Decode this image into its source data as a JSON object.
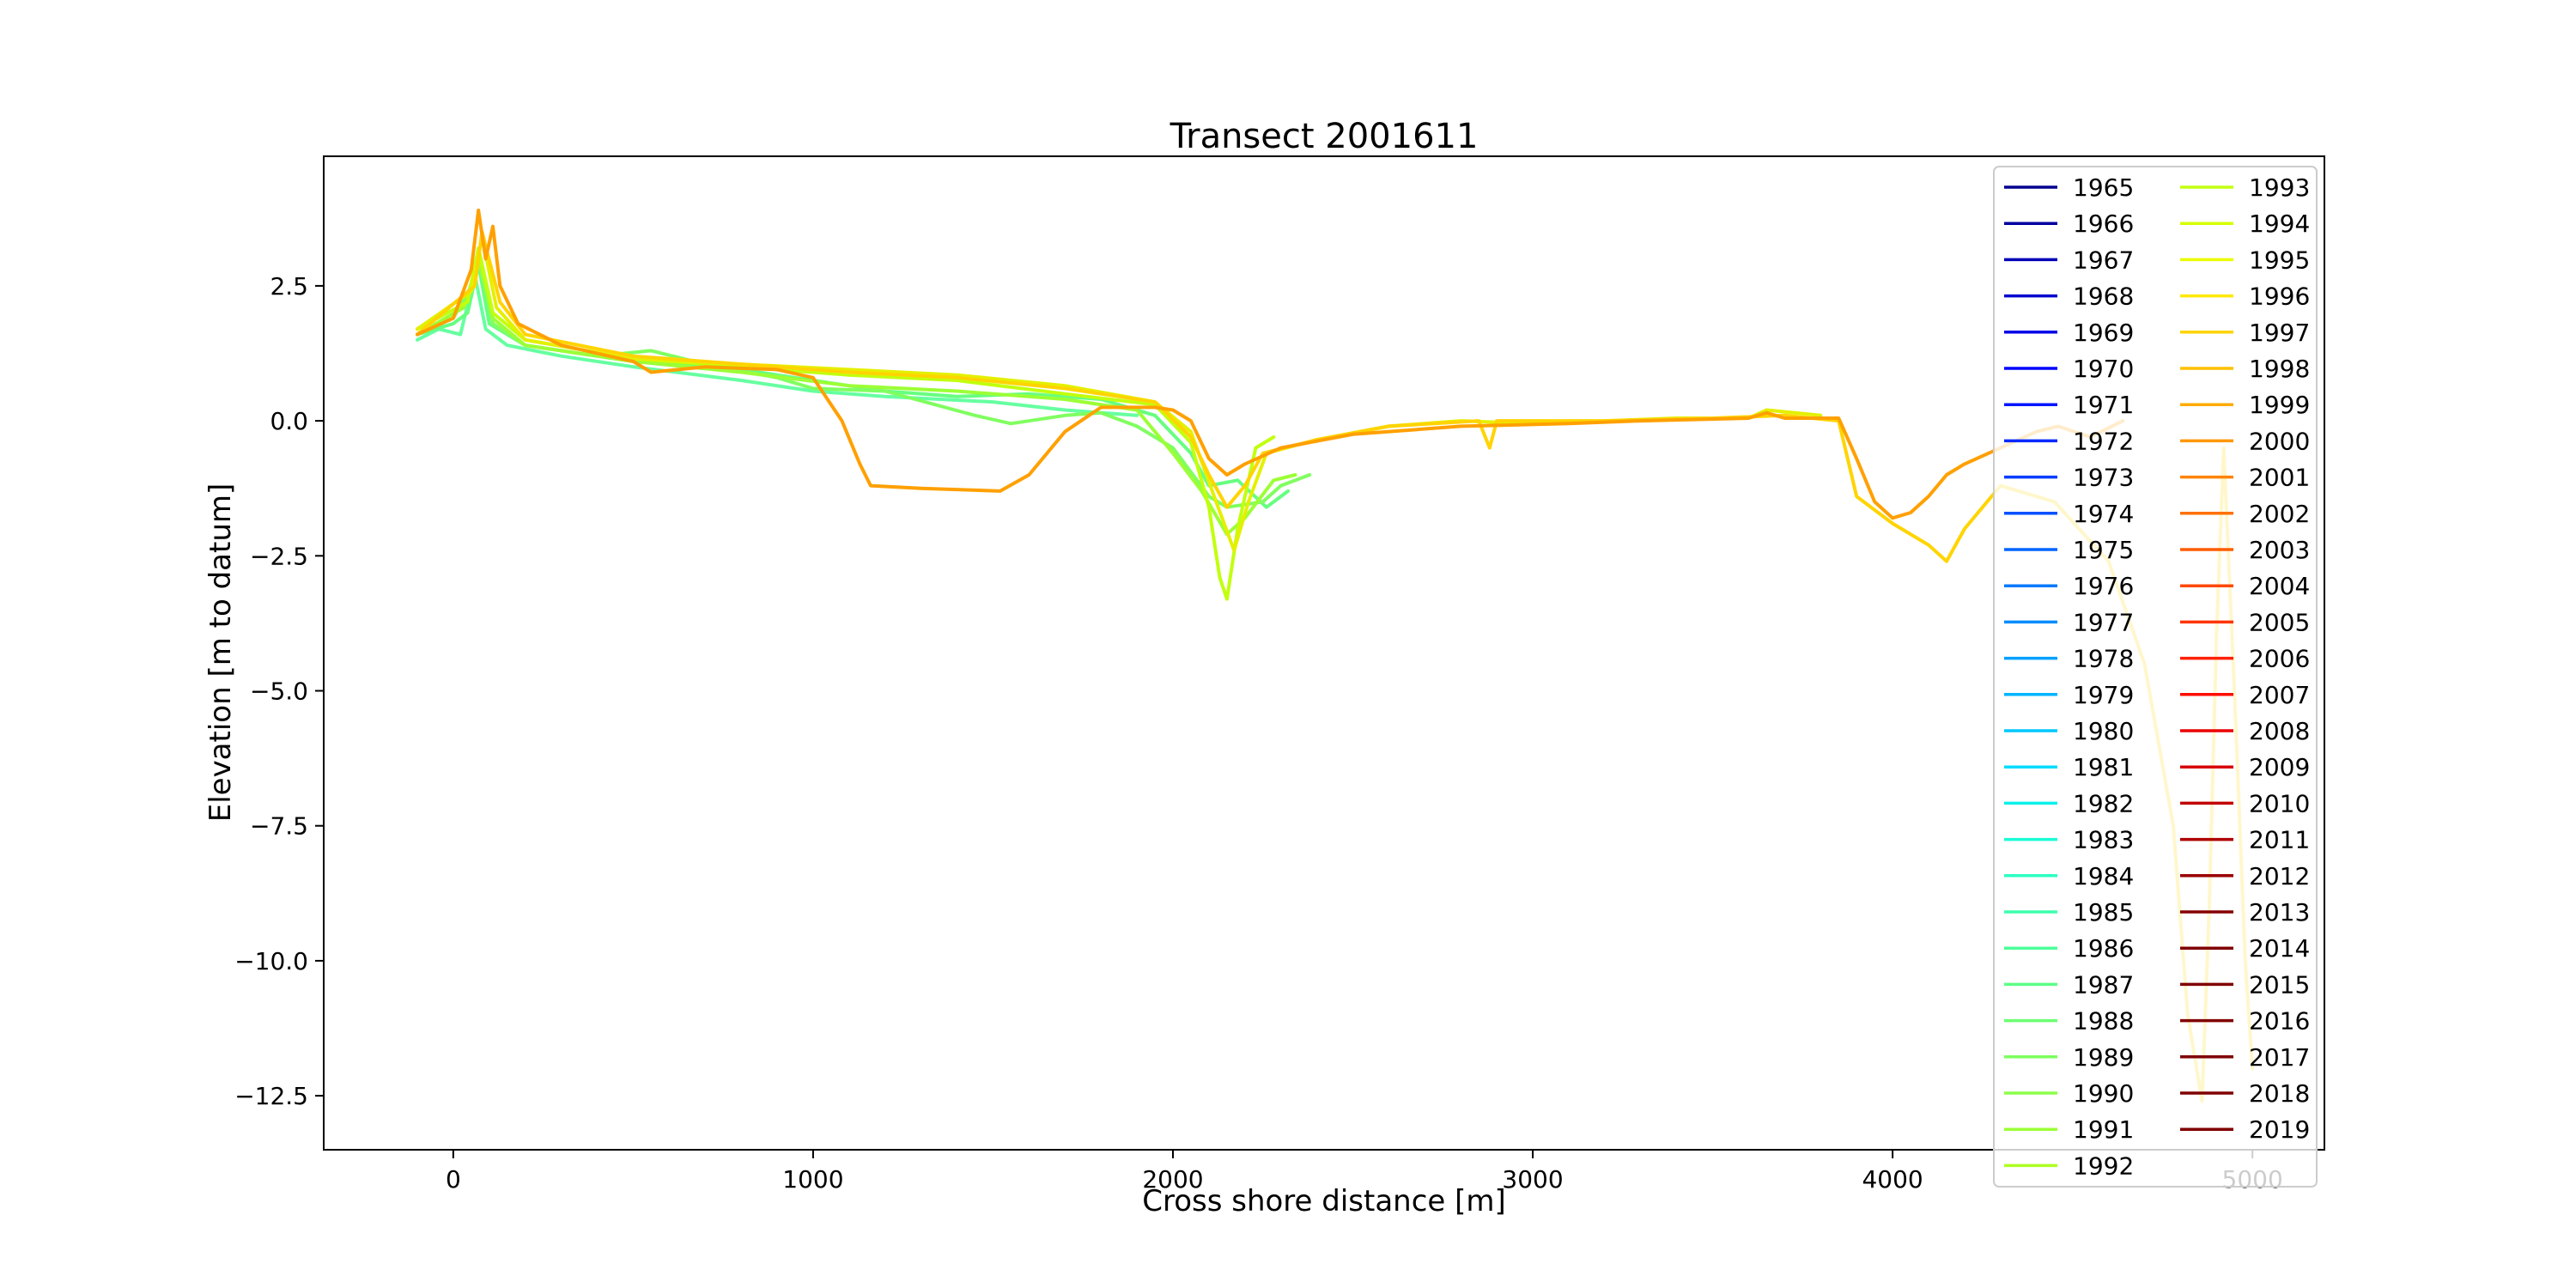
{
  "chart_data": {
    "type": "line",
    "title": "Transect 2001611",
    "xlabel": "Cross shore distance [m]",
    "ylabel": "Elevation [m to datum]",
    "xlim": [
      -360,
      5200
    ],
    "ylim": [
      -13.5,
      4.9
    ],
    "xticks": [
      0,
      1000,
      2000,
      3000,
      4000,
      5000
    ],
    "xtick_labels": [
      "0",
      "1000",
      "2000",
      "3000",
      "4000",
      "5000"
    ],
    "yticks": [
      2.5,
      0,
      -2.5,
      -5,
      -7.5,
      -10,
      -12.5
    ],
    "ytick_labels": [
      "2.5",
      "0.0",
      "−2.5",
      "−5.0",
      "−7.5",
      "−10.0",
      "−12.5"
    ],
    "grid": false,
    "legend_placement": "right",
    "legend_columns": 2,
    "legend": [
      {
        "label": "1965",
        "color": "#00008f"
      },
      {
        "label": "1966",
        "color": "#00009f"
      },
      {
        "label": "1967",
        "color": "#0000b8"
      },
      {
        "label": "1968",
        "color": "#0000d0"
      },
      {
        "label": "1969",
        "color": "#0000e8"
      },
      {
        "label": "1970",
        "color": "#0004ff"
      },
      {
        "label": "1971",
        "color": "#0014ff"
      },
      {
        "label": "1972",
        "color": "#0028ff"
      },
      {
        "label": "1973",
        "color": "#003cff"
      },
      {
        "label": "1974",
        "color": "#0050ff"
      },
      {
        "label": "1975",
        "color": "#0064ff"
      },
      {
        "label": "1976",
        "color": "#0078ff"
      },
      {
        "label": "1977",
        "color": "#008cff"
      },
      {
        "label": "1978",
        "color": "#00a0ff"
      },
      {
        "label": "1979",
        "color": "#00b4ff"
      },
      {
        "label": "1980",
        "color": "#00c8ff"
      },
      {
        "label": "1981",
        "color": "#00dcfe"
      },
      {
        "label": "1982",
        "color": "#0cf0ea"
      },
      {
        "label": "1983",
        "color": "#1cfcd6"
      },
      {
        "label": "1984",
        "color": "#2cffc2"
      },
      {
        "label": "1985",
        "color": "#3cffae"
      },
      {
        "label": "1986",
        "color": "#4cff9a"
      },
      {
        "label": "1987",
        "color": "#5cff86"
      },
      {
        "label": "1988",
        "color": "#6cff72"
      },
      {
        "label": "1989",
        "color": "#7cff5e"
      },
      {
        "label": "1990",
        "color": "#8cff4a"
      },
      {
        "label": "1991",
        "color": "#9cff36"
      },
      {
        "label": "1992",
        "color": "#aeff22"
      },
      {
        "label": "1993",
        "color": "#c2ff0e"
      },
      {
        "label": "1994",
        "color": "#d6ff00"
      },
      {
        "label": "1995",
        "color": "#eafc00"
      },
      {
        "label": "1996",
        "color": "#fee800"
      },
      {
        "label": "1997",
        "color": "#ffd400"
      },
      {
        "label": "1998",
        "color": "#ffc000"
      },
      {
        "label": "1999",
        "color": "#ffac00"
      },
      {
        "label": "2000",
        "color": "#ff9800"
      },
      {
        "label": "2001",
        "color": "#ff8400"
      },
      {
        "label": "2002",
        "color": "#ff7000"
      },
      {
        "label": "2003",
        "color": "#ff5c00"
      },
      {
        "label": "2004",
        "color": "#ff4800"
      },
      {
        "label": "2005",
        "color": "#ff3400"
      },
      {
        "label": "2006",
        "color": "#ff2000"
      },
      {
        "label": "2007",
        "color": "#fe0c00"
      },
      {
        "label": "2008",
        "color": "#ea0000"
      },
      {
        "label": "2009",
        "color": "#d60000"
      },
      {
        "label": "2010",
        "color": "#c20000"
      },
      {
        "label": "2011",
        "color": "#ae0000"
      },
      {
        "label": "2012",
        "color": "#9a0000"
      },
      {
        "label": "2013",
        "color": "#860000"
      },
      {
        "label": "2014",
        "color": "#800000"
      },
      {
        "label": "2015",
        "color": "#800000"
      },
      {
        "label": "2016",
        "color": "#800000"
      },
      {
        "label": "2017",
        "color": "#800000"
      },
      {
        "label": "2018",
        "color": "#800000"
      },
      {
        "label": "2019",
        "color": "#800000"
      }
    ],
    "series": [
      {
        "name": "1986",
        "color": "#66ffa0",
        "points": [
          [
            -100,
            1.5
          ],
          [
            -40,
            1.7
          ],
          [
            20,
            1.6
          ],
          [
            60,
            2.7
          ],
          [
            90,
            1.7
          ],
          [
            150,
            1.4
          ],
          [
            300,
            1.2
          ],
          [
            500,
            1.0
          ],
          [
            800,
            0.75
          ],
          [
            1000,
            0.55
          ],
          [
            1200,
            0.45
          ],
          [
            1500,
            0.35
          ],
          [
            1700,
            0.2
          ],
          [
            1900,
            0.1
          ]
        ]
      },
      {
        "name": "1988",
        "color": "#66ff80",
        "points": [
          [
            -100,
            1.6
          ],
          [
            0,
            1.8
          ],
          [
            40,
            2.0
          ],
          [
            70,
            2.9
          ],
          [
            100,
            1.8
          ],
          [
            200,
            1.4
          ],
          [
            500,
            1.1
          ],
          [
            800,
            0.95
          ],
          [
            1000,
            0.75
          ],
          [
            1200,
            0.55
          ],
          [
            1400,
            0.45
          ],
          [
            1600,
            0.5
          ],
          [
            1800,
            0.4
          ],
          [
            1950,
            0.1
          ],
          [
            2050,
            -0.6
          ],
          [
            2100,
            -1.2
          ],
          [
            2180,
            -1.1
          ],
          [
            2260,
            -1.6
          ],
          [
            2320,
            -1.3
          ]
        ]
      },
      {
        "name": "1990",
        "color": "#80ff60",
        "points": [
          [
            -100,
            1.6
          ],
          [
            0,
            1.9
          ],
          [
            50,
            2.5
          ],
          [
            70,
            3.1
          ],
          [
            110,
            1.8
          ],
          [
            200,
            1.4
          ],
          [
            400,
            1.2
          ],
          [
            550,
            1.3
          ],
          [
            700,
            1.05
          ],
          [
            900,
            0.8
          ],
          [
            1000,
            0.6
          ],
          [
            1200,
            0.55
          ],
          [
            1450,
            0.1
          ],
          [
            1550,
            -0.05
          ],
          [
            1700,
            0.1
          ],
          [
            1800,
            0.15
          ],
          [
            1900,
            -0.1
          ],
          [
            2000,
            -0.5
          ],
          [
            2100,
            -1.4
          ],
          [
            2150,
            -1.6
          ],
          [
            2250,
            -1.5
          ],
          [
            2300,
            -1.2
          ],
          [
            2380,
            -1.0
          ]
        ]
      },
      {
        "name": "1993",
        "color": "#9cff36",
        "points": [
          [
            -100,
            1.6
          ],
          [
            30,
            2.1
          ],
          [
            70,
            3.0
          ],
          [
            110,
            1.9
          ],
          [
            200,
            1.4
          ],
          [
            500,
            1.1
          ],
          [
            800,
            0.9
          ],
          [
            1100,
            0.65
          ],
          [
            1400,
            0.55
          ],
          [
            1700,
            0.4
          ],
          [
            1900,
            0.2
          ],
          [
            2000,
            -0.6
          ],
          [
            2080,
            -1.3
          ],
          [
            2150,
            -2.1
          ],
          [
            2200,
            -1.8
          ],
          [
            2280,
            -1.1
          ],
          [
            2340,
            -1.0
          ]
        ]
      },
      {
        "name": "1995",
        "color": "#c2ff0e",
        "points": [
          [
            -100,
            1.7
          ],
          [
            40,
            2.2
          ],
          [
            70,
            3.2
          ],
          [
            110,
            2.0
          ],
          [
            200,
            1.5
          ],
          [
            500,
            1.15
          ],
          [
            800,
            1.0
          ],
          [
            1100,
            0.85
          ],
          [
            1400,
            0.75
          ],
          [
            1700,
            0.5
          ],
          [
            1950,
            0.3
          ],
          [
            2050,
            -0.4
          ],
          [
            2100,
            -1.6
          ],
          [
            2130,
            -2.9
          ],
          [
            2150,
            -3.3
          ],
          [
            2180,
            -2.0
          ],
          [
            2230,
            -0.5
          ],
          [
            2280,
            -0.3
          ]
        ]
      },
      {
        "name": "1998",
        "color": "#e4f000",
        "points": [
          [
            -100,
            1.7
          ],
          [
            50,
            2.4
          ],
          [
            80,
            3.4
          ],
          [
            120,
            2.1
          ],
          [
            200,
            1.5
          ],
          [
            500,
            1.15
          ],
          [
            800,
            1.05
          ],
          [
            1100,
            0.95
          ],
          [
            1400,
            0.85
          ],
          [
            1700,
            0.65
          ],
          [
            1950,
            0.35
          ],
          [
            2050,
            -0.2
          ],
          [
            2120,
            -1.5
          ],
          [
            2170,
            -2.4
          ],
          [
            2210,
            -1.5
          ],
          [
            2260,
            -0.6
          ],
          [
            2400,
            -0.35
          ],
          [
            2600,
            -0.1
          ],
          [
            2800,
            0.0
          ],
          [
            3000,
            -0.05
          ],
          [
            3200,
            0.0
          ],
          [
            3400,
            0.05
          ],
          [
            3600,
            0.05
          ],
          [
            3650,
            0.2
          ],
          [
            3800,
            0.1
          ]
        ]
      },
      {
        "name": "2001",
        "color": "#ffd400",
        "points": [
          [
            -100,
            1.6
          ],
          [
            60,
            2.5
          ],
          [
            80,
            3.5
          ],
          [
            130,
            2.2
          ],
          [
            200,
            1.6
          ],
          [
            500,
            1.2
          ],
          [
            800,
            1.05
          ],
          [
            1100,
            0.9
          ],
          [
            1400,
            0.8
          ],
          [
            1700,
            0.6
          ],
          [
            1950,
            0.35
          ],
          [
            2050,
            -0.3
          ],
          [
            2100,
            -1.0
          ],
          [
            2150,
            -1.6
          ],
          [
            2200,
            -1.2
          ],
          [
            2250,
            -0.6
          ],
          [
            2400,
            -0.35
          ],
          [
            2600,
            -0.1
          ],
          [
            2850,
            0.0
          ],
          [
            2880,
            -0.5
          ],
          [
            2900,
            0.0
          ],
          [
            3200,
            0.0
          ],
          [
            3500,
            0.05
          ],
          [
            3700,
            0.1
          ],
          [
            3850,
            0.0
          ],
          [
            3900,
            -1.4
          ],
          [
            4000,
            -1.9
          ],
          [
            4100,
            -2.3
          ],
          [
            4150,
            -2.6
          ],
          [
            4200,
            -2.0
          ],
          [
            4300,
            -1.2
          ],
          [
            4450,
            -1.5
          ],
          [
            4600,
            -2.6
          ],
          [
            4700,
            -4.5
          ],
          [
            4780,
            -7.5
          ],
          [
            4820,
            -11.0
          ],
          [
            4860,
            -12.6
          ],
          [
            4880,
            -9.0
          ],
          [
            4900,
            -4.0
          ],
          [
            4920,
            -0.5
          ],
          [
            4950,
            -5.0
          ],
          [
            4980,
            -10.0
          ],
          [
            5000,
            -12.0
          ]
        ]
      },
      {
        "name": "2004",
        "color": "#ffa000",
        "points": [
          [
            -100,
            1.6
          ],
          [
            0,
            1.9
          ],
          [
            50,
            2.8
          ],
          [
            70,
            3.9
          ],
          [
            90,
            3.0
          ],
          [
            110,
            3.6
          ],
          [
            130,
            2.5
          ],
          [
            180,
            1.8
          ],
          [
            300,
            1.4
          ],
          [
            500,
            1.1
          ],
          [
            550,
            0.9
          ],
          [
            700,
            1.0
          ],
          [
            900,
            0.95
          ],
          [
            1000,
            0.8
          ],
          [
            1080,
            0.0
          ],
          [
            1130,
            -0.8
          ],
          [
            1160,
            -1.2
          ],
          [
            1300,
            -1.25
          ],
          [
            1520,
            -1.3
          ],
          [
            1600,
            -1.0
          ],
          [
            1700,
            -0.2
          ],
          [
            1800,
            0.25
          ],
          [
            1950,
            0.25
          ],
          [
            2000,
            0.2
          ],
          [
            2050,
            0.0
          ],
          [
            2100,
            -0.7
          ],
          [
            2150,
            -1.0
          ],
          [
            2200,
            -0.8
          ],
          [
            2300,
            -0.5
          ],
          [
            2500,
            -0.25
          ],
          [
            2800,
            -0.1
          ],
          [
            3100,
            -0.05
          ],
          [
            3300,
            0.0
          ],
          [
            3600,
            0.05
          ],
          [
            3650,
            0.15
          ],
          [
            3700,
            0.05
          ],
          [
            3850,
            0.05
          ],
          [
            3900,
            -0.7
          ],
          [
            3950,
            -1.5
          ],
          [
            4000,
            -1.8
          ],
          [
            4050,
            -1.7
          ],
          [
            4100,
            -1.4
          ],
          [
            4150,
            -1.0
          ],
          [
            4200,
            -0.8
          ],
          [
            4300,
            -0.5
          ],
          [
            4400,
            -0.2
          ],
          [
            4460,
            -0.1
          ],
          [
            4550,
            -0.3
          ],
          [
            4640,
            0.0
          ]
        ]
      }
    ]
  }
}
